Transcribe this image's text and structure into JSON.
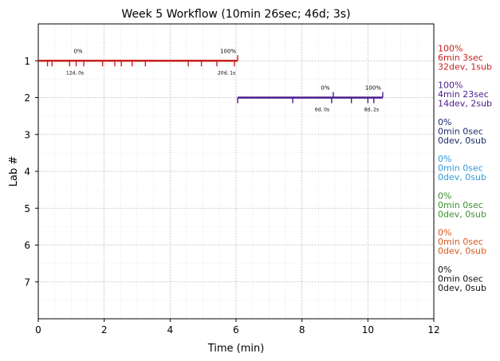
{
  "chart_data": {
    "type": "timeline",
    "title": "Week 5 Workflow (10min 26sec; 46d; 3s)",
    "xlabel": "Time (min)",
    "ylabel": "Lab #",
    "xlim": [
      0,
      12
    ],
    "ylim": [
      0,
      8
    ],
    "xticks": [
      0,
      2,
      4,
      6,
      8,
      10,
      12
    ],
    "yticks": [
      1,
      2,
      3,
      4,
      5,
      6,
      7
    ],
    "grid": true,
    "labs": [
      {
        "lab": 1,
        "color": "#c8201e",
        "start": 0,
        "end": 6.05,
        "ticks_down": [
          0.28,
          0.42,
          0.95,
          1.15,
          1.38,
          1.95,
          2.32,
          2.52,
          2.85,
          3.25,
          4.55,
          4.95,
          5.42,
          5.95
        ],
        "ticks_up": [
          6.05
        ],
        "start_pct": "0%",
        "end_pct": "100%",
        "start_note": "12d, 0s",
        "end_note": "20d, 1s",
        "label_pct": "100%",
        "label_time": "6min 3sec",
        "label_counts": "32dev, 1sub"
      },
      {
        "lab": 2,
        "color": "#4b1b8c",
        "start": 6.05,
        "end": 10.45,
        "ticks_down": [
          6.05,
          7.72,
          8.9,
          9.5,
          10.0,
          10.18
        ],
        "ticks_up": [
          8.95,
          10.45
        ],
        "start_pct": "0%",
        "end_pct": "100%",
        "start_note": "6d, 0s",
        "end_note": "8d, 2s",
        "label_pct": "100%",
        "label_time": "4min 23sec",
        "label_counts": "14dev, 2sub"
      },
      {
        "lab": 3,
        "color": "#1c2a6c",
        "label_pct": "0%",
        "label_time": "0min 0sec",
        "label_counts": "0dev, 0sub"
      },
      {
        "lab": 4,
        "color": "#2f9ad8",
        "label_pct": "0%",
        "label_time": "0min 0sec",
        "label_counts": "0dev, 0sub"
      },
      {
        "lab": 5,
        "color": "#3a8f2e",
        "label_pct": "0%",
        "label_time": "0min 0sec",
        "label_counts": "0dev, 0sub"
      },
      {
        "lab": 6,
        "color": "#d9561a",
        "label_pct": "0%",
        "label_time": "0min 0sec",
        "label_counts": "0dev, 0sub"
      },
      {
        "lab": 7,
        "color": "#111111",
        "label_pct": "0%",
        "label_time": "0min 0sec",
        "label_counts": "0dev, 0sub"
      }
    ]
  }
}
